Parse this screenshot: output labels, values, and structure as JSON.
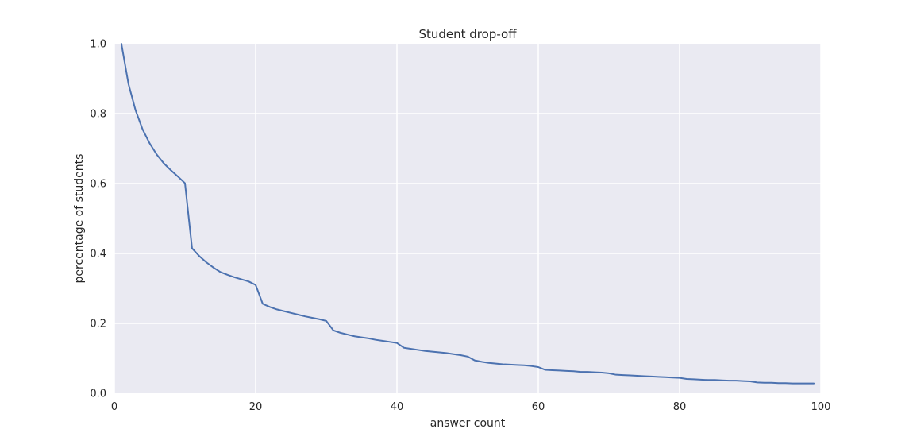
{
  "chart_data": {
    "type": "line",
    "title": "Student drop-off",
    "xlabel": "answer count",
    "ylabel": "percentage of students",
    "xlim": [
      0,
      100
    ],
    "ylim": [
      0.0,
      1.0
    ],
    "x_ticks": [
      0,
      20,
      40,
      60,
      80,
      100
    ],
    "y_ticks": [
      0.0,
      0.2,
      0.4,
      0.6,
      0.8,
      1.0
    ],
    "x_tick_labels": [
      "0",
      "20",
      "40",
      "60",
      "80",
      "100"
    ],
    "y_tick_labels": [
      "0.0",
      "0.2",
      "0.4",
      "0.6",
      "0.8",
      "1.0"
    ],
    "grid": true,
    "background_color": "#eaeaf2",
    "grid_color": "#ffffff",
    "series": [
      {
        "color": "#4c72b0",
        "x": [
          1,
          2,
          3,
          4,
          5,
          6,
          7,
          8,
          9,
          10,
          11,
          12,
          13,
          14,
          15,
          16,
          17,
          18,
          19,
          20,
          21,
          22,
          23,
          24,
          25,
          26,
          27,
          28,
          29,
          30,
          31,
          32,
          33,
          34,
          35,
          36,
          37,
          38,
          39,
          40,
          41,
          42,
          43,
          44,
          45,
          46,
          47,
          48,
          49,
          50,
          51,
          52,
          53,
          54,
          55,
          56,
          57,
          58,
          59,
          60,
          61,
          62,
          63,
          64,
          65,
          66,
          67,
          68,
          69,
          70,
          71,
          72,
          73,
          74,
          75,
          76,
          77,
          78,
          79,
          80,
          81,
          82,
          83,
          84,
          85,
          86,
          87,
          88,
          89,
          90,
          91,
          92,
          93,
          94,
          95,
          96,
          97,
          98,
          99
        ],
        "values": [
          1.0,
          0.885,
          0.81,
          0.755,
          0.715,
          0.683,
          0.658,
          0.638,
          0.62,
          0.601,
          0.415,
          0.393,
          0.375,
          0.36,
          0.347,
          0.339,
          0.332,
          0.326,
          0.32,
          0.31,
          0.256,
          0.247,
          0.24,
          0.235,
          0.23,
          0.225,
          0.22,
          0.216,
          0.212,
          0.207,
          0.18,
          0.173,
          0.168,
          0.163,
          0.16,
          0.157,
          0.153,
          0.15,
          0.147,
          0.144,
          0.13,
          0.127,
          0.124,
          0.121,
          0.119,
          0.117,
          0.115,
          0.112,
          0.109,
          0.105,
          0.094,
          0.09,
          0.087,
          0.085,
          0.083,
          0.082,
          0.081,
          0.08,
          0.078,
          0.075,
          0.067,
          0.066,
          0.065,
          0.064,
          0.063,
          0.061,
          0.061,
          0.06,
          0.059,
          0.057,
          0.053,
          0.052,
          0.051,
          0.05,
          0.049,
          0.048,
          0.047,
          0.046,
          0.045,
          0.044,
          0.041,
          0.04,
          0.039,
          0.038,
          0.038,
          0.037,
          0.036,
          0.036,
          0.035,
          0.034,
          0.031,
          0.03,
          0.03,
          0.029,
          0.029,
          0.028,
          0.028,
          0.028,
          0.028
        ]
      }
    ]
  }
}
